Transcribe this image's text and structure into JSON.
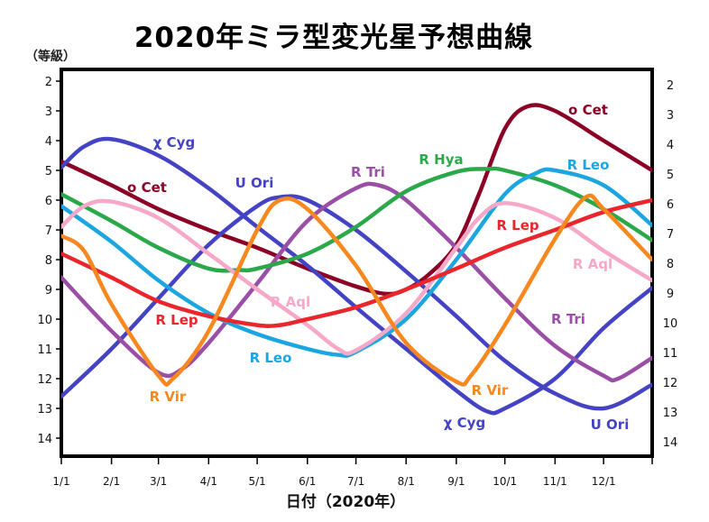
{
  "chart_data": {
    "type": "line",
    "title": "2020年ミラ型変光星予想曲線",
    "ylabel": "（等級）",
    "xlabel": "日付（2020年）",
    "ylim": [
      14.6,
      1.6
    ],
    "y_inverted": true,
    "yticks": [
      "2",
      "3",
      "4",
      "5",
      "6",
      "7",
      "8",
      "9",
      "10",
      "11",
      "12",
      "13",
      "14"
    ],
    "xticks": [
      "1/1",
      "2/1",
      "3/1",
      "4/1",
      "5/1",
      "6/1",
      "7/1",
      "8/1",
      "9/1",
      "10/1",
      "11/1",
      "12/1"
    ],
    "xlim": [
      "2020-01-01",
      "2020-12-31"
    ],
    "grid": false,
    "legend": "inline labels",
    "series": [
      {
        "name": "o Cet",
        "color": "#8b0024",
        "labels": [
          "o Cet",
          "o Cet"
        ],
        "points": [
          [
            "2020-01-01",
            4.7
          ],
          [
            "2020-02-01",
            5.5
          ],
          [
            "2020-03-01",
            6.3
          ],
          [
            "2020-04-01",
            7.0
          ],
          [
            "2020-05-01",
            7.6
          ],
          [
            "2020-06-01",
            8.3
          ],
          [
            "2020-07-01",
            8.9
          ],
          [
            "2020-07-20",
            9.15
          ],
          [
            "2020-08-01",
            9.0
          ],
          [
            "2020-08-15",
            8.5
          ],
          [
            "2020-09-01",
            7.5
          ],
          [
            "2020-09-15",
            5.8
          ],
          [
            "2020-10-01",
            3.6
          ],
          [
            "2020-10-15",
            2.85
          ],
          [
            "2020-11-01",
            3.0
          ],
          [
            "2020-12-01",
            4.0
          ],
          [
            "2020-12-31",
            5.0
          ]
        ]
      },
      {
        "name": "χ Cyg",
        "color": "#4343c4",
        "labels": [
          "χ Cyg",
          "χ Cyg"
        ],
        "points": [
          [
            "2020-01-01",
            4.9
          ],
          [
            "2020-01-15",
            4.2
          ],
          [
            "2020-02-01",
            3.95
          ],
          [
            "2020-03-01",
            4.5
          ],
          [
            "2020-04-01",
            5.6
          ],
          [
            "2020-05-01",
            6.9
          ],
          [
            "2020-06-01",
            8.2
          ],
          [
            "2020-07-01",
            9.6
          ],
          [
            "2020-08-01",
            11.0
          ],
          [
            "2020-09-01",
            12.4
          ],
          [
            "2020-09-20",
            13.1
          ],
          [
            "2020-10-01",
            13.0
          ],
          [
            "2020-11-01",
            12.0
          ],
          [
            "2020-12-01",
            10.3
          ],
          [
            "2020-12-31",
            8.95
          ]
        ]
      },
      {
        "name": "U Ori",
        "color": "#4343c4",
        "labels": [
          "U Ori",
          "U Ori"
        ],
        "points": [
          [
            "2020-01-01",
            12.6
          ],
          [
            "2020-02-01",
            11.0
          ],
          [
            "2020-03-01",
            9.3
          ],
          [
            "2020-04-01",
            7.5
          ],
          [
            "2020-05-01",
            6.2
          ],
          [
            "2020-05-15",
            5.9
          ],
          [
            "2020-06-01",
            6.0
          ],
          [
            "2020-07-01",
            7.0
          ],
          [
            "2020-08-01",
            8.4
          ],
          [
            "2020-09-01",
            9.9
          ],
          [
            "2020-10-01",
            11.4
          ],
          [
            "2020-11-01",
            12.5
          ],
          [
            "2020-12-01",
            13.0
          ],
          [
            "2020-12-31",
            12.2
          ]
        ]
      },
      {
        "name": "R Tri",
        "color": "#9b4ea6",
        "labels": [
          "R Tri",
          "R Tri"
        ],
        "points": [
          [
            "2020-01-01",
            8.6
          ],
          [
            "2020-02-01",
            10.4
          ],
          [
            "2020-03-01",
            11.8
          ],
          [
            "2020-03-15",
            11.7
          ],
          [
            "2020-04-01",
            10.8
          ],
          [
            "2020-05-01",
            8.8
          ],
          [
            "2020-06-01",
            6.7
          ],
          [
            "2020-07-01",
            5.6
          ],
          [
            "2020-07-15",
            5.5
          ],
          [
            "2020-08-01",
            6.0
          ],
          [
            "2020-09-01",
            7.6
          ],
          [
            "2020-10-01",
            9.3
          ],
          [
            "2020-11-01",
            10.9
          ],
          [
            "2020-12-01",
            11.9
          ],
          [
            "2020-12-10",
            12.0
          ],
          [
            "2020-12-31",
            11.3
          ]
        ]
      },
      {
        "name": "R Hya",
        "color": "#2aa84a",
        "labels": [
          "R Hya"
        ],
        "points": [
          [
            "2020-01-01",
            5.8
          ],
          [
            "2020-02-01",
            6.7
          ],
          [
            "2020-03-01",
            7.6
          ],
          [
            "2020-04-01",
            8.3
          ],
          [
            "2020-04-20",
            8.35
          ],
          [
            "2020-05-01",
            8.3
          ],
          [
            "2020-06-01",
            7.8
          ],
          [
            "2020-07-01",
            6.9
          ],
          [
            "2020-08-01",
            5.7
          ],
          [
            "2020-09-01",
            5.05
          ],
          [
            "2020-09-20",
            4.95
          ],
          [
            "2020-10-01",
            5.0
          ],
          [
            "2020-11-01",
            5.5
          ],
          [
            "2020-12-01",
            6.3
          ],
          [
            "2020-12-31",
            7.35
          ]
        ]
      },
      {
        "name": "R Leo",
        "color": "#1ba6e0",
        "labels": [
          "R Leo",
          "R Leo"
        ],
        "points": [
          [
            "2020-01-01",
            6.2
          ],
          [
            "2020-02-01",
            7.4
          ],
          [
            "2020-03-01",
            8.7
          ],
          [
            "2020-04-01",
            9.8
          ],
          [
            "2020-05-01",
            10.5
          ],
          [
            "2020-06-01",
            11.0
          ],
          [
            "2020-06-20",
            11.2
          ],
          [
            "2020-07-01",
            11.1
          ],
          [
            "2020-08-01",
            10.0
          ],
          [
            "2020-09-01",
            8.0
          ],
          [
            "2020-10-01",
            5.8
          ],
          [
            "2020-10-20",
            5.1
          ],
          [
            "2020-11-01",
            5.0
          ],
          [
            "2020-12-01",
            5.5
          ],
          [
            "2020-12-31",
            6.85
          ]
        ]
      },
      {
        "name": "R Aql",
        "color": "#f5a8c8",
        "labels": [
          "R Aql",
          "R Aql"
        ],
        "points": [
          [
            "2020-01-01",
            6.9
          ],
          [
            "2020-01-15",
            6.2
          ],
          [
            "2020-02-01",
            6.05
          ],
          [
            "2020-03-01",
            6.6
          ],
          [
            "2020-04-01",
            7.8
          ],
          [
            "2020-05-01",
            9.0
          ],
          [
            "2020-06-01",
            10.2
          ],
          [
            "2020-06-20",
            11.0
          ],
          [
            "2020-07-01",
            11.05
          ],
          [
            "2020-08-01",
            9.8
          ],
          [
            "2020-09-01",
            7.6
          ],
          [
            "2020-09-15",
            6.6
          ],
          [
            "2020-10-01",
            6.1
          ],
          [
            "2020-11-01",
            6.6
          ],
          [
            "2020-12-01",
            7.7
          ],
          [
            "2020-12-31",
            8.7
          ]
        ]
      },
      {
        "name": "R Lep",
        "color": "#e8262b",
        "labels": [
          "R Lep",
          "R Lep"
        ],
        "points": [
          [
            "2020-01-01",
            7.8
          ],
          [
            "2020-02-01",
            8.6
          ],
          [
            "2020-03-01",
            9.4
          ],
          [
            "2020-04-01",
            9.9
          ],
          [
            "2020-05-01",
            10.2
          ],
          [
            "2020-05-15",
            10.2
          ],
          [
            "2020-06-01",
            10.0
          ],
          [
            "2020-07-01",
            9.6
          ],
          [
            "2020-08-01",
            9.0
          ],
          [
            "2020-09-01",
            8.3
          ],
          [
            "2020-10-01",
            7.6
          ],
          [
            "2020-11-01",
            7.0
          ],
          [
            "2020-12-01",
            6.4
          ],
          [
            "2020-12-31",
            6.0
          ]
        ]
      },
      {
        "name": "R Vir",
        "color": "#f7881f",
        "labels": [
          "R Vir",
          "R Vir"
        ],
        "points": [
          [
            "2020-01-01",
            7.2
          ],
          [
            "2020-01-15",
            7.7
          ],
          [
            "2020-02-01",
            9.5
          ],
          [
            "2020-03-01",
            11.9
          ],
          [
            "2020-03-10",
            12.0
          ],
          [
            "2020-04-01",
            10.4
          ],
          [
            "2020-05-01",
            7.0
          ],
          [
            "2020-05-15",
            6.0
          ],
          [
            "2020-06-01",
            6.3
          ],
          [
            "2020-07-01",
            8.2
          ],
          [
            "2020-08-01",
            10.8
          ],
          [
            "2020-09-01",
            12.1
          ],
          [
            "2020-09-10",
            11.9
          ],
          [
            "2020-10-01",
            10.2
          ],
          [
            "2020-11-01",
            7.3
          ],
          [
            "2020-11-20",
            5.9
          ],
          [
            "2020-12-01",
            6.3
          ],
          [
            "2020-12-31",
            8.0
          ]
        ]
      }
    ]
  }
}
